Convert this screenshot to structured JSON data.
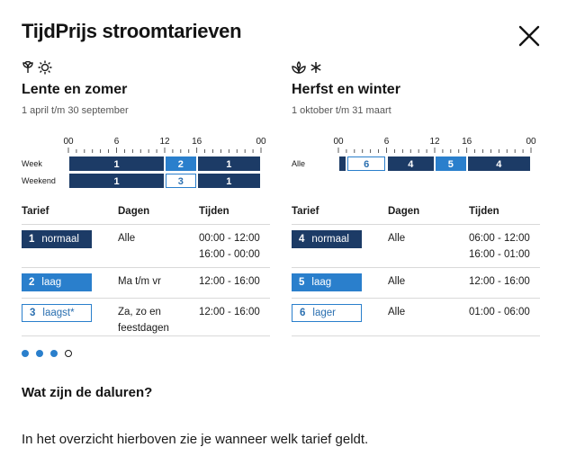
{
  "title": "TijdPrijs stroomtarieven",
  "close_icon": "close-icon",
  "colors": {
    "normaal": "#1c3b66",
    "laag": "#2a7fcc",
    "outline": "#2a7fcc"
  },
  "summer": {
    "icons": [
      "flower-icon",
      "sun-icon"
    ],
    "title": "Lente en zomer",
    "dates": "1 april t/m 30 september",
    "ticks": [
      "00",
      "6",
      "12",
      "16",
      "00"
    ],
    "rows": [
      {
        "label": "Week",
        "segments": [
          {
            "from": 0,
            "to": 12,
            "tariff": "1"
          },
          {
            "from": 12,
            "to": 16,
            "tariff": "2"
          },
          {
            "from": 16,
            "to": 24,
            "tariff": "1"
          }
        ]
      },
      {
        "label": "Weekend",
        "segments": [
          {
            "from": 0,
            "to": 12,
            "tariff": "1"
          },
          {
            "from": 12,
            "to": 16,
            "tariff": "3"
          },
          {
            "from": 16,
            "to": 24,
            "tariff": "1"
          }
        ]
      }
    ],
    "headers": {
      "tarief": "Tarief",
      "dagen": "Dagen",
      "tijden": "Tijden"
    },
    "tariffs": [
      {
        "num": "1",
        "name": "normaal",
        "style": "n",
        "days": "Alle",
        "times": "00:00 - 12:00\n16:00 - 00:00"
      },
      {
        "num": "2",
        "name": "laag",
        "style": "l",
        "days": "Ma t/m vr",
        "times": "12:00 - 16:00"
      },
      {
        "num": "3",
        "name": "laagst*",
        "style": "o",
        "days": "Za, zo en\nfeestdagen",
        "times": "12:00 - 16:00"
      }
    ]
  },
  "winter": {
    "icons": [
      "leaf-icon",
      "snowflake-icon"
    ],
    "title": "Herfst en winter",
    "dates": "1 oktober t/m 31 maart",
    "ticks": [
      "00",
      "6",
      "12",
      "16",
      "00"
    ],
    "rows": [
      {
        "label": "Alle",
        "segments": [
          {
            "from": 0,
            "to": 1,
            "tariff": "4",
            "hide": true
          },
          {
            "from": 1,
            "to": 6,
            "tariff": "6"
          },
          {
            "from": 6,
            "to": 12,
            "tariff": "4"
          },
          {
            "from": 12,
            "to": 16,
            "tariff": "5"
          },
          {
            "from": 16,
            "to": 24,
            "tariff": "4"
          }
        ]
      }
    ],
    "headers": {
      "tarief": "Tarief",
      "dagen": "Dagen",
      "tijden": "Tijden"
    },
    "tariffs": [
      {
        "num": "4",
        "name": "normaal",
        "style": "n",
        "days": "Alle",
        "times": "06:00 - 12:00\n16:00 - 01:00"
      },
      {
        "num": "5",
        "name": "laag",
        "style": "l",
        "days": "Alle",
        "times": "12:00 - 16:00"
      },
      {
        "num": "6",
        "name": "lager",
        "style": "o",
        "days": "Alle",
        "times": "01:00 - 06:00"
      }
    ]
  },
  "carousel": {
    "count": 4,
    "active_filled": 3
  },
  "faq": {
    "question": "Wat zijn de daluren?",
    "answer": "In het overzicht hierboven zie je wanneer welk tarief geldt."
  }
}
